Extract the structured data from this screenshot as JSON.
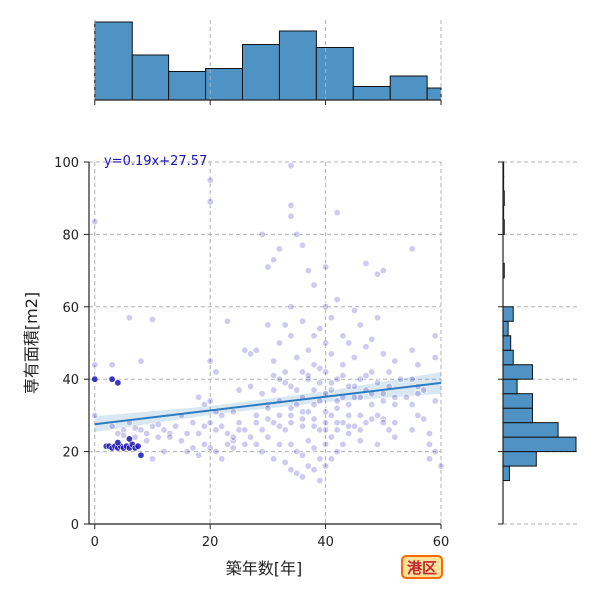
{
  "badge": "港区",
  "chart_data": {
    "type": "scatter",
    "xlabel": "築年数[年]",
    "ylabel": "専有面積[m2]",
    "xlim": [
      -1,
      60
    ],
    "ylim": [
      0,
      100
    ],
    "xticks": [
      "0",
      "20",
      "40",
      "60"
    ],
    "yticks": [
      "0",
      "20",
      "40",
      "60",
      "80",
      "100"
    ],
    "grid": true,
    "colors": {
      "points": "#1a14b8",
      "regression": "#2a7bbf",
      "hist": "#4e93c4"
    },
    "regression": {
      "label": "y=0.19x+27.57",
      "slope": 0.19,
      "intercept": 27.57
    },
    "x_hist": {
      "bins": [
        [
          0,
          6.5
        ],
        [
          6.5,
          12.8
        ],
        [
          12.8,
          19.2
        ],
        [
          19.2,
          25.6
        ],
        [
          25.6,
          32
        ],
        [
          32,
          38.4
        ],
        [
          38.4,
          44.8
        ],
        [
          44.8,
          51.2
        ],
        [
          51.2,
          57.6
        ],
        [
          57.6,
          64
        ]
      ],
      "counts": [
        104,
        60,
        38,
        42,
        74,
        92,
        70,
        18,
        32,
        16
      ]
    },
    "y_hist": {
      "bins": [
        [
          12,
          16
        ],
        [
          16,
          20
        ],
        [
          20,
          24
        ],
        [
          24,
          28
        ],
        [
          28,
          32
        ],
        [
          32,
          36
        ],
        [
          36,
          40
        ],
        [
          40,
          44
        ],
        [
          44,
          48
        ],
        [
          48,
          52
        ],
        [
          52,
          56
        ],
        [
          56,
          60
        ],
        [
          68,
          72
        ],
        [
          80,
          84
        ],
        [
          84,
          88
        ],
        [
          88,
          92
        ],
        [
          92,
          96
        ],
        [
          96,
          100
        ]
      ],
      "counts": [
        5,
        26,
        57,
        43,
        23,
        23,
        11,
        23,
        8,
        6,
        4,
        8,
        1,
        1,
        0.5,
        1,
        0.5,
        0.5
      ]
    },
    "points": [
      [
        0,
        83.5
      ],
      [
        0,
        44
      ],
      [
        0,
        40
      ],
      [
        0,
        30
      ],
      [
        3,
        40
      ],
      [
        3,
        44
      ],
      [
        4,
        39
      ],
      [
        6,
        57
      ],
      [
        8,
        45
      ],
      [
        10,
        56.5
      ],
      [
        2,
        21.5
      ],
      [
        2.5,
        21.5
      ],
      [
        3,
        21
      ],
      [
        3.5,
        21.5
      ],
      [
        4,
        21
      ],
      [
        4.5,
        21.5
      ],
      [
        5,
        21
      ],
      [
        5.5,
        21.5
      ],
      [
        6,
        21
      ],
      [
        6.5,
        22
      ],
      [
        7,
        21
      ],
      [
        7.5,
        21.5
      ],
      [
        3,
        27
      ],
      [
        4,
        25
      ],
      [
        5,
        26
      ],
      [
        6,
        28
      ],
      [
        7,
        24
      ],
      [
        8,
        26
      ],
      [
        9,
        25
      ],
      [
        10,
        27
      ],
      [
        11,
        24
      ],
      [
        12,
        26
      ],
      [
        13,
        25
      ],
      [
        14,
        27
      ],
      [
        15,
        23
      ],
      [
        16,
        25
      ],
      [
        5,
        24.5
      ],
      [
        7,
        26.5
      ],
      [
        9,
        23
      ],
      [
        11,
        27.5
      ],
      [
        13,
        24
      ],
      [
        8,
        19
      ],
      [
        10,
        18
      ],
      [
        12,
        20
      ],
      [
        4,
        22.5
      ],
      [
        6,
        23.5
      ],
      [
        15,
        30
      ],
      [
        17,
        28
      ],
      [
        18,
        25
      ],
      [
        19,
        33
      ],
      [
        19,
        27
      ],
      [
        20,
        34
      ],
      [
        20,
        28
      ],
      [
        21,
        26
      ],
      [
        21,
        31
      ],
      [
        22,
        27
      ],
      [
        23,
        25
      ],
      [
        24,
        31
      ],
      [
        24,
        23
      ],
      [
        25,
        37
      ],
      [
        25,
        28
      ],
      [
        16,
        20
      ],
      [
        17,
        21
      ],
      [
        18,
        19
      ],
      [
        19,
        22
      ],
      [
        20,
        21
      ],
      [
        21,
        20
      ],
      [
        22,
        18
      ],
      [
        23,
        22
      ],
      [
        24,
        21
      ],
      [
        20,
        95
      ],
      [
        20,
        89
      ],
      [
        23,
        56
      ],
      [
        20,
        45
      ],
      [
        21,
        42
      ],
      [
        18,
        35
      ],
      [
        22,
        30
      ],
      [
        24,
        24
      ],
      [
        25,
        26
      ],
      [
        26,
        22
      ],
      [
        27,
        24
      ],
      [
        28,
        22
      ],
      [
        28,
        30
      ],
      [
        29,
        26
      ],
      [
        29,
        20
      ],
      [
        30,
        24
      ],
      [
        30,
        33
      ],
      [
        30,
        55
      ],
      [
        31,
        18
      ],
      [
        31,
        28
      ],
      [
        31,
        45
      ],
      [
        31,
        37
      ],
      [
        26,
        48
      ],
      [
        27,
        47
      ],
      [
        28,
        48
      ],
      [
        29,
        80
      ],
      [
        30,
        71
      ],
      [
        31,
        73
      ],
      [
        32,
        76
      ],
      [
        32,
        50
      ],
      [
        32,
        40
      ],
      [
        32,
        30
      ],
      [
        32,
        22
      ],
      [
        33,
        17
      ],
      [
        33,
        55
      ],
      [
        33,
        42
      ],
      [
        33,
        26
      ],
      [
        34,
        99
      ],
      [
        34,
        88
      ],
      [
        34,
        85
      ],
      [
        34,
        60
      ],
      [
        34,
        52
      ],
      [
        34,
        38
      ],
      [
        34,
        30
      ],
      [
        34,
        22
      ],
      [
        34,
        15
      ],
      [
        35,
        80
      ],
      [
        35,
        46
      ],
      [
        35,
        33
      ],
      [
        35,
        20
      ],
      [
        35,
        14
      ],
      [
        36,
        77
      ],
      [
        36,
        56
      ],
      [
        36,
        42
      ],
      [
        36,
        35
      ],
      [
        36,
        27
      ],
      [
        36,
        19
      ],
      [
        36,
        13
      ],
      [
        37,
        70
      ],
      [
        37,
        48
      ],
      [
        37,
        40
      ],
      [
        37,
        31
      ],
      [
        37,
        23
      ],
      [
        37,
        16
      ],
      [
        38,
        66
      ],
      [
        38,
        52
      ],
      [
        38,
        44
      ],
      [
        38,
        37
      ],
      [
        38,
        29
      ],
      [
        38,
        21
      ],
      [
        38,
        15
      ],
      [
        39,
        54
      ],
      [
        39,
        43
      ],
      [
        39,
        34
      ],
      [
        39,
        26
      ],
      [
        39,
        18
      ],
      [
        39,
        12
      ],
      [
        40,
        71
      ],
      [
        40,
        60
      ],
      [
        40,
        50
      ],
      [
        40,
        42
      ],
      [
        40,
        36
      ],
      [
        40,
        28
      ],
      [
        40,
        22
      ],
      [
        40,
        16
      ],
      [
        41,
        57
      ],
      [
        41,
        47
      ],
      [
        41,
        39
      ],
      [
        41,
        30
      ],
      [
        41,
        24
      ],
      [
        41,
        18
      ],
      [
        42,
        86
      ],
      [
        42,
        62
      ],
      [
        42,
        40
      ],
      [
        42,
        32
      ],
      [
        42,
        26
      ],
      [
        42,
        20
      ],
      [
        43,
        52
      ],
      [
        43,
        44
      ],
      [
        43,
        35
      ],
      [
        43,
        28
      ],
      [
        43,
        22
      ],
      [
        44,
        50
      ],
      [
        44,
        38
      ],
      [
        44,
        30
      ],
      [
        44,
        25
      ],
      [
        45,
        59
      ],
      [
        45,
        46
      ],
      [
        45,
        35
      ],
      [
        45,
        27
      ],
      [
        46,
        55
      ],
      [
        46,
        40
      ],
      [
        46,
        30
      ],
      [
        46,
        23
      ],
      [
        47,
        72
      ],
      [
        47,
        49
      ],
      [
        47,
        37
      ],
      [
        47,
        28
      ],
      [
        48,
        51
      ],
      [
        48,
        42
      ],
      [
        48,
        33
      ],
      [
        49,
        69
      ],
      [
        49,
        57
      ],
      [
        49,
        30
      ],
      [
        49,
        22
      ],
      [
        50,
        70
      ],
      [
        50,
        47
      ],
      [
        50,
        36
      ],
      [
        50,
        29
      ],
      [
        51,
        38
      ],
      [
        51,
        26
      ],
      [
        52,
        45
      ],
      [
        52,
        35
      ],
      [
        52,
        28
      ],
      [
        52,
        24
      ],
      [
        55,
        76
      ],
      [
        55,
        48
      ],
      [
        55,
        40
      ],
      [
        55,
        33
      ],
      [
        55,
        26
      ],
      [
        56,
        44
      ],
      [
        56,
        38
      ],
      [
        56,
        30
      ],
      [
        57,
        37
      ],
      [
        57,
        29
      ],
      [
        58,
        25
      ],
      [
        58,
        22
      ],
      [
        59,
        52
      ],
      [
        59,
        46
      ],
      [
        59,
        34
      ],
      [
        60,
        16
      ],
      [
        59,
        20
      ],
      [
        58,
        18
      ],
      [
        30,
        32
      ],
      [
        32,
        34
      ],
      [
        34,
        32
      ],
      [
        36,
        31
      ],
      [
        38,
        33
      ],
      [
        40,
        31
      ],
      [
        42,
        34
      ],
      [
        44,
        33
      ],
      [
        46,
        35
      ],
      [
        48,
        36
      ],
      [
        50,
        34
      ],
      [
        52,
        33
      ],
      [
        54,
        35
      ],
      [
        56,
        36
      ],
      [
        26,
        26
      ],
      [
        28,
        28
      ],
      [
        30,
        29
      ],
      [
        32,
        27
      ],
      [
        34,
        28
      ],
      [
        36,
        29
      ],
      [
        38,
        27
      ],
      [
        40,
        26
      ],
      [
        42,
        28
      ],
      [
        44,
        27
      ],
      [
        46,
        26
      ],
      [
        48,
        29
      ],
      [
        50,
        28
      ],
      [
        27,
        38
      ],
      [
        29,
        36
      ],
      [
        31,
        41
      ],
      [
        33,
        39
      ],
      [
        35,
        37
      ],
      [
        37,
        41
      ],
      [
        39,
        39
      ],
      [
        41,
        37
      ],
      [
        43,
        41
      ],
      [
        45,
        38
      ],
      [
        47,
        41
      ],
      [
        49,
        39
      ],
      [
        51,
        42
      ],
      [
        53,
        40
      ]
    ]
  }
}
